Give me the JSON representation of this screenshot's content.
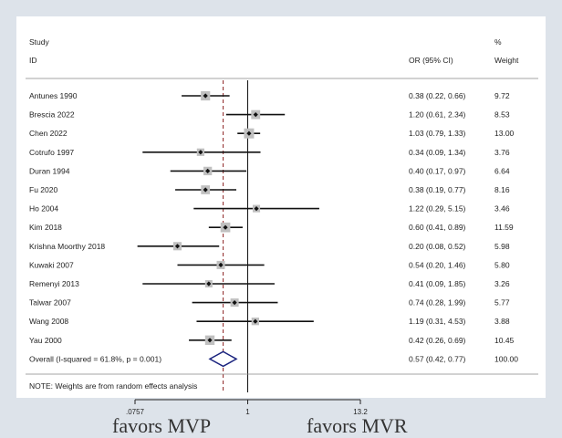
{
  "chart_data": {
    "type": "forest",
    "header": {
      "study": "Study",
      "id": "ID",
      "or_ci": "OR (95% CI)",
      "pct": "%",
      "weight": "Weight"
    },
    "studies": [
      {
        "label": "Antunes 1990",
        "or": 0.38,
        "lo": 0.22,
        "hi": 0.66,
        "or_text": "0.38 (0.22, 0.66)",
        "weight": "9.72"
      },
      {
        "label": "Brescia 2022",
        "or": 1.2,
        "lo": 0.61,
        "hi": 2.34,
        "or_text": "1.20 (0.61, 2.34)",
        "weight": "8.53"
      },
      {
        "label": "Chen 2022",
        "or": 1.03,
        "lo": 0.79,
        "hi": 1.33,
        "or_text": "1.03 (0.79, 1.33)",
        "weight": "13.00"
      },
      {
        "label": "Cotrufo 1997",
        "or": 0.34,
        "lo": 0.09,
        "hi": 1.34,
        "or_text": "0.34 (0.09, 1.34)",
        "weight": "3.76"
      },
      {
        "label": "Duran 1994",
        "or": 0.4,
        "lo": 0.17,
        "hi": 0.97,
        "or_text": "0.40 (0.17, 0.97)",
        "weight": "6.64"
      },
      {
        "label": "Fu 2020",
        "or": 0.38,
        "lo": 0.19,
        "hi": 0.77,
        "or_text": "0.38 (0.19, 0.77)",
        "weight": "8.16"
      },
      {
        "label": "Ho 2004",
        "or": 1.22,
        "lo": 0.29,
        "hi": 5.15,
        "or_text": "1.22 (0.29, 5.15)",
        "weight": "3.46"
      },
      {
        "label": "Kim 2018",
        "or": 0.6,
        "lo": 0.41,
        "hi": 0.89,
        "or_text": "0.60 (0.41, 0.89)",
        "weight": "11.59"
      },
      {
        "label": "Krishna Moorthy 2018",
        "or": 0.2,
        "lo": 0.08,
        "hi": 0.52,
        "or_text": "0.20 (0.08, 0.52)",
        "weight": "5.98"
      },
      {
        "label": "Kuwaki 2007",
        "or": 0.54,
        "lo": 0.2,
        "hi": 1.46,
        "or_text": "0.54 (0.20, 1.46)",
        "weight": "5.80"
      },
      {
        "label": "Remenyi 2013",
        "or": 0.41,
        "lo": 0.09,
        "hi": 1.85,
        "or_text": "0.41 (0.09, 1.85)",
        "weight": "3.26"
      },
      {
        "label": "Talwar 2007",
        "or": 0.74,
        "lo": 0.28,
        "hi": 1.99,
        "or_text": "0.74 (0.28, 1.99)",
        "weight": "5.77"
      },
      {
        "label": "Wang 2008",
        "or": 1.19,
        "lo": 0.31,
        "hi": 4.53,
        "or_text": "1.19 (0.31, 4.53)",
        "weight": "3.88"
      },
      {
        "label": "Yau 2000",
        "or": 0.42,
        "lo": 0.26,
        "hi": 0.69,
        "or_text": "0.42 (0.26, 0.69)",
        "weight": "10.45"
      }
    ],
    "overall": {
      "label": "Overall  (I-squared = 61.8%, p = 0.001)",
      "or": 0.57,
      "lo": 0.42,
      "hi": 0.77,
      "or_text": "0.57 (0.42, 0.77)",
      "weight": "100.00"
    },
    "note": "NOTE: Weights are from random effects analysis",
    "x_scale": "log",
    "xlim": [
      0.0757,
      13.2
    ],
    "x_ticks": [
      {
        "value": 0.0757,
        "label": ".0757"
      },
      {
        "value": 1,
        "label": "1"
      },
      {
        "value": 13.2,
        "label": "13.2"
      }
    ],
    "null_line": 1,
    "favors_left": "favors MVP",
    "favors_right": "favors MVR",
    "colors": {
      "marker_box": "#c0c0c0",
      "ci_line": "#111111",
      "diamond": "#1a237e",
      "overall_line": "#8b2020",
      "background": "#dde3ea"
    }
  }
}
